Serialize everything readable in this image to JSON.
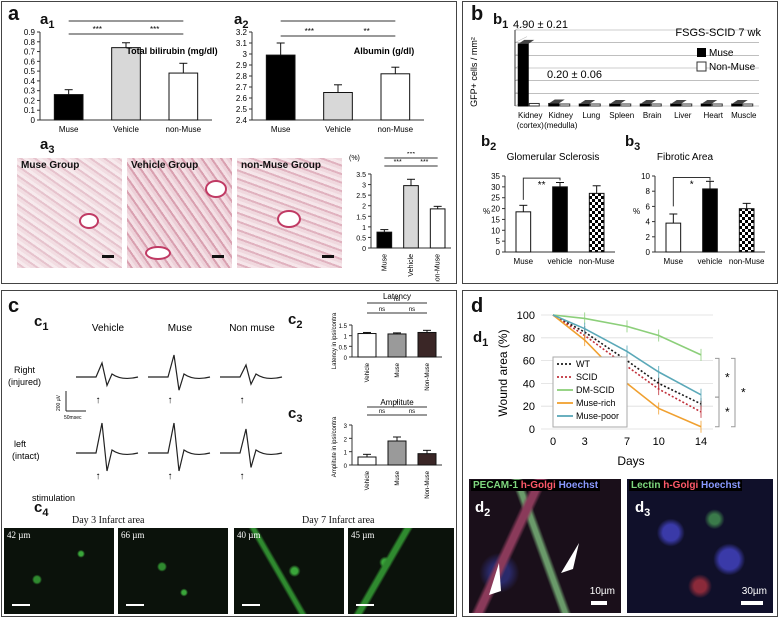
{
  "panel_a": {
    "letter": "a",
    "a1": {
      "label_main": "a",
      "label_sub": "1",
      "title": "Total bilirubin (mg/dl)"
    },
    "a2": {
      "label_main": "a",
      "label_sub": "2",
      "title": "Albumin (g/dl)"
    },
    "a3": {
      "label_main": "a",
      "label_sub": "3",
      "percent_unit": "(%)"
    },
    "histology": [
      "Muse Group",
      "Vehicle Group",
      "non-Muse Group"
    ]
  },
  "panel_b": {
    "letter": "b",
    "b1": {
      "label_main": "b",
      "label_sub": "1",
      "title": "FSGS-SCID 7 wk",
      "ylabel": "GFP+ cells / mm²",
      "annotation_high": "4.90 ± 0.21",
      "annotation_low": "0.20 ± 0.06",
      "legend": [
        "Muse",
        "Non-Muse"
      ],
      "categories": [
        "Kidney (cortex)",
        "Kidney (medulla)",
        "Lung",
        "Spleen",
        "Brain",
        "Liver",
        "Heart",
        "Muscle"
      ]
    },
    "b2": {
      "label_main": "b",
      "label_sub": "2",
      "title": "Glomerular Sclerosis",
      "ylabel": "%",
      "sig": "**"
    },
    "b3": {
      "label_main": "b",
      "label_sub": "3",
      "title": "Fibrotic Area",
      "ylabel": "%",
      "sig": "*"
    }
  },
  "panel_c": {
    "letter": "c",
    "c1": {
      "label_main": "c",
      "label_sub": "1",
      "columns": [
        "Vehicle",
        "Muse",
        "Non muse"
      ],
      "row_right": [
        "Right",
        "(injured)"
      ],
      "row_left": [
        "left",
        "(intact)"
      ],
      "stimulation": "stimulation",
      "scale_v": "200 µV",
      "scale_t": "50msec"
    },
    "c2": {
      "label_main": "c",
      "label_sub": "2",
      "title": "Latency",
      "ylabel": "Latency in ipsi/contra"
    },
    "c3": {
      "label_main": "c",
      "label_sub": "3",
      "title": "Amplitute",
      "ylabel": "Amplitute in ipsi/contra"
    },
    "c4": {
      "label_main": "c",
      "label_sub": "4",
      "day3": "Day 3 Infarct area",
      "day7": "Day 7 Infarct area",
      "depths": [
        "42 µm",
        "66 µm",
        "40 µm",
        "45 µm"
      ]
    }
  },
  "panel_d": {
    "letter": "d",
    "d1": {
      "label_main": "d",
      "label_sub": "1",
      "ylabel": "Wound area (%)",
      "xlabel": "Days"
    },
    "d2": {
      "label_main": "d",
      "label_sub": "2",
      "stain1": "PECAM-1",
      "stain2": "h-Golgi",
      "stain3": "Hoechst",
      "scale": "10µm"
    },
    "d3": {
      "label_main": "d",
      "label_sub": "3",
      "stain1": "Lectin",
      "stain2": "h-Golgi",
      "stain3": "Hoechst",
      "scale": "30µm"
    }
  },
  "chart_data": [
    {
      "id": "a1",
      "type": "bar",
      "title": "Total bilirubin (mg/dl)",
      "categories": [
        "Muse",
        "Vehicle",
        "non-Muse"
      ],
      "values": [
        0.26,
        0.74,
        0.48
      ],
      "errors": [
        0.05,
        0.05,
        0.1
      ],
      "ylim": [
        0,
        0.9
      ],
      "yticks": [
        "0",
        "0.1",
        "0.2",
        "0.3",
        "0.4",
        "0.5",
        "0.6",
        "0.7",
        "0.8",
        "0.9"
      ],
      "colors": [
        "#000000",
        "#d8d8d8",
        "#ffffff"
      ],
      "sig": [
        "***",
        "***",
        "***"
      ]
    },
    {
      "id": "a2",
      "type": "bar",
      "title": "Albumin (g/dl)",
      "categories": [
        "Muse",
        "Vehicle",
        "non-Muse"
      ],
      "values": [
        2.99,
        2.65,
        2.82
      ],
      "errors": [
        0.11,
        0.07,
        0.06
      ],
      "ylim": [
        2.4,
        3.2
      ],
      "yticks": [
        "2.4",
        "2.5",
        "2.6",
        "2.7",
        "2.8",
        "2.9",
        "3",
        "3.1",
        "3.2"
      ],
      "colors": [
        "#000000",
        "#d8d8d8",
        "#ffffff"
      ],
      "sig": [
        "**",
        "***",
        "**"
      ]
    },
    {
      "id": "a3",
      "type": "bar",
      "categories": [
        "Muse",
        "Vehicle",
        "non-Muse"
      ],
      "values": [
        0.75,
        2.95,
        1.85
      ],
      "errors": [
        0.12,
        0.3,
        0.12
      ],
      "ylim": [
        0,
        3.5
      ],
      "yticks": [
        "0",
        "0.5",
        "1",
        "1.5",
        "2",
        "2.5",
        "3",
        "3.5"
      ],
      "colors": [
        "#000000",
        "#d8d8d8",
        "#ffffff"
      ],
      "sig": [
        "***",
        "***",
        "***"
      ]
    },
    {
      "id": "b1",
      "type": "bar",
      "title": "FSGS-SCID 7 wk",
      "categories": [
        "Kidney (cortex)",
        "Kidney (medulla)",
        "Lung",
        "Spleen",
        "Brain",
        "Liver",
        "Heart",
        "Muscle"
      ],
      "series": [
        {
          "name": "Muse",
          "values": [
            4.9,
            0.2,
            0,
            0,
            0,
            0,
            0,
            0
          ]
        },
        {
          "name": "Non-Muse",
          "values": [
            0.2,
            0,
            0,
            0,
            0,
            0,
            0,
            0
          ]
        }
      ],
      "ylim": [
        0,
        6
      ]
    },
    {
      "id": "b2",
      "type": "bar",
      "title": "Glomerular Sclerosis",
      "categories": [
        "Muse",
        "vehicle",
        "non-Muse"
      ],
      "values": [
        18.5,
        30,
        27
      ],
      "errors": [
        3,
        2,
        3.5
      ],
      "ylim": [
        0,
        35
      ],
      "yticks": [
        "0",
        "5",
        "10",
        "15",
        "20",
        "25",
        "30",
        "35"
      ],
      "sig": "**"
    },
    {
      "id": "b3",
      "type": "bar",
      "title": "Fibrotic Area",
      "categories": [
        "Muse",
        "vehicle",
        "non-Muse"
      ],
      "values": [
        3.8,
        8.3,
        5.7
      ],
      "errors": [
        1.2,
        1,
        0.7
      ],
      "ylim": [
        0,
        10
      ],
      "yticks": [
        "0",
        "2",
        "4",
        "6",
        "8",
        "10"
      ],
      "sig": "*"
    },
    {
      "id": "c2",
      "type": "bar",
      "title": "Latency",
      "categories": [
        "Vehicle",
        "Muse",
        "Non-Muse"
      ],
      "values": [
        1.1,
        1.08,
        1.15
      ],
      "errors": [
        0.05,
        0.05,
        0.1
      ],
      "ylim": [
        0,
        1.5
      ],
      "yticks": [
        "0",
        "0.5",
        "1",
        "1.5"
      ],
      "colors": [
        "#ffffff",
        "#9a9a9a",
        "#3a2626"
      ],
      "sig": [
        "ns",
        "ns",
        "ns"
      ]
    },
    {
      "id": "c3",
      "type": "bar",
      "title": "Amplitute",
      "categories": [
        "Vehicle",
        "Muse",
        "Non-Muse"
      ],
      "values": [
        0.6,
        1.8,
        0.85
      ],
      "errors": [
        0.2,
        0.3,
        0.25
      ],
      "ylim": [
        0,
        3
      ],
      "yticks": [
        "0",
        "1",
        "2",
        "3"
      ],
      "colors": [
        "#ffffff",
        "#9a9a9a",
        "#3a2626"
      ],
      "sig": [
        "*",
        "ns",
        "ns"
      ]
    },
    {
      "id": "d1",
      "type": "line",
      "xlabel": "Days",
      "ylabel": "Wound area (%)",
      "x": [
        0,
        3,
        7,
        10,
        14
      ],
      "ylim": [
        0,
        100
      ],
      "xticks": [
        "0",
        "3",
        "7",
        "10",
        "14"
      ],
      "yticks": [
        "0",
        "20",
        "40",
        "60",
        "80",
        "100"
      ],
      "series": [
        {
          "name": "WT",
          "values": [
            100,
            85,
            60,
            40,
            22
          ],
          "color": "#1a1a1a",
          "dash": "2,2"
        },
        {
          "name": "SCID",
          "values": [
            100,
            82,
            55,
            35,
            15
          ],
          "color": "#c0303a",
          "dash": "2,2"
        },
        {
          "name": "DM-SCID",
          "values": [
            100,
            97,
            90,
            82,
            65
          ],
          "color": "#8ccf7a",
          "dash": ""
        },
        {
          "name": "Muse-rich",
          "values": [
            100,
            78,
            40,
            18,
            2
          ],
          "color": "#f0a030",
          "dash": ""
        },
        {
          "name": "Muse-poor",
          "values": [
            100,
            88,
            68,
            50,
            30
          ],
          "color": "#5aa8b8",
          "dash": ""
        }
      ],
      "sig": [
        "*",
        "*",
        "*"
      ]
    }
  ]
}
